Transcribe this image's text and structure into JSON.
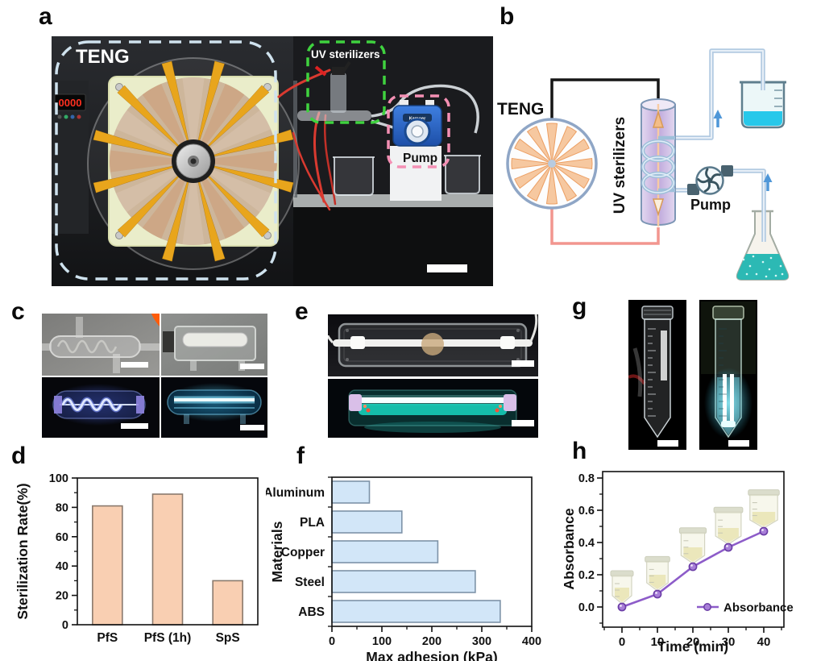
{
  "figure": {
    "panel_labels": {
      "a": "a",
      "b": "b",
      "c": "c",
      "d": "d",
      "e": "e",
      "f": "f",
      "g": "g",
      "h": "h"
    }
  },
  "panel_a": {
    "teng_label": "TENG",
    "uv_label": "UV sterilizers",
    "pump_label": "Pump",
    "pump_brand": "Kamoer",
    "display_value": "0000"
  },
  "panel_b": {
    "teng_label": "TENG",
    "uv_label": "UV sterilizers",
    "pump_label": "Pump"
  },
  "chart_data": [
    {
      "id": "d",
      "type": "bar",
      "categories": [
        "PfS",
        "PfS (1h)",
        "SpS"
      ],
      "values": [
        81,
        89,
        30
      ],
      "title": "",
      "xlabel": "",
      "ylabel": "Sterilization Rate(%)",
      "ylim": [
        0,
        100
      ],
      "yticks": [
        0,
        20,
        40,
        60,
        80,
        100
      ],
      "y_minor_step": 10,
      "grid": false,
      "bar_fill": "#f9cfb2",
      "bar_stroke": "#8a7a6d"
    },
    {
      "id": "f",
      "type": "barh",
      "categories": [
        "Aluminum",
        "PLA",
        "Copper",
        "Steel",
        "ABS"
      ],
      "values": [
        75,
        140,
        212,
        287,
        337
      ],
      "title": "",
      "xlabel": "Max adhesion (kPa)",
      "ylabel": "Materials",
      "xlim": [
        0,
        400
      ],
      "xticks": [
        0,
        100,
        200,
        300,
        400
      ],
      "x_minor_step": 50,
      "grid": false,
      "bar_fill": "#d2e6f8",
      "bar_stroke": "#7e93a8"
    },
    {
      "id": "h",
      "type": "line",
      "x": [
        0,
        10,
        20,
        30,
        40
      ],
      "y": [
        0.0,
        0.08,
        0.25,
        0.37,
        0.47
      ],
      "title": "",
      "xlabel": "Time (min)",
      "ylabel": "Absorbance",
      "xlim": [
        0,
        40
      ],
      "ylim": [
        0,
        0.8
      ],
      "xticks": [
        0,
        10,
        20,
        30,
        40
      ],
      "yticks": [
        "0.0",
        "0.2",
        "0.4",
        "0.6",
        "0.8"
      ],
      "x_minor_step": 5,
      "y_minor_step": 0.1,
      "legend": "Absorbance",
      "legend_position": "lower right",
      "grid": false,
      "line_color": "#8d5cc9",
      "marker_fill": "#a87fd8",
      "marker_stroke": "#6b3da6"
    }
  ],
  "colors": {
    "teng_dash": "#cfe2ee",
    "uv_dash": "#3fd23f",
    "pump_dash": "#f490b4",
    "diagram_pipe": "#b3cbe2",
    "wire_red": "#f2968f",
    "wire_black": "#161616",
    "wedge_fill": "#f6c8a0",
    "arrow_blue": "#4f97d8",
    "water_cyan": "#27c8ea",
    "flask_teal": "#2cb9b4"
  }
}
